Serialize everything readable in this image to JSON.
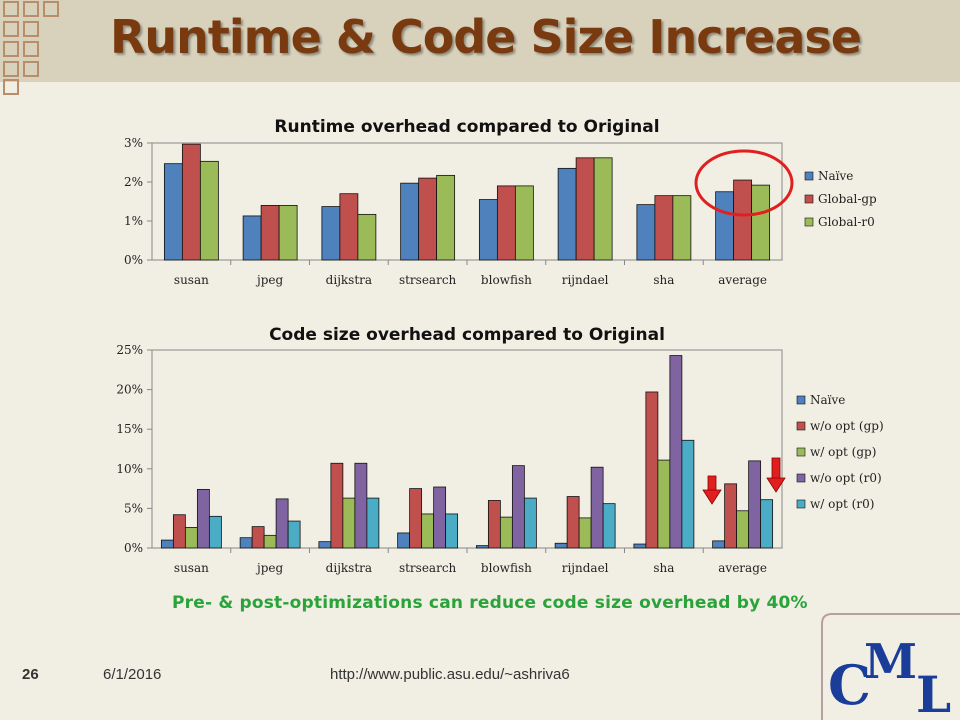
{
  "slide": {
    "title": "Runtime & Code Size Increase",
    "note": "Pre- & post-optimizations can reduce code size overhead by 40%",
    "page_number": "26",
    "date": "6/1/2016",
    "url": "http://www.public.asu.edu/~ashriva6",
    "logo_text": "CML",
    "colors": {
      "title": "#7a3a10",
      "note": "#2aa33a",
      "highlight": "#e02020"
    }
  },
  "chart_data": [
    {
      "type": "bar",
      "title": "Runtime overhead compared to Original",
      "categories": [
        "susan",
        "jpeg",
        "dijkstra",
        "strsearch",
        "blowfish",
        "rijndael",
        "sha",
        "average"
      ],
      "ylim": [
        0,
        3
      ],
      "yticks": [
        "0%",
        "1%",
        "2%",
        "3%"
      ],
      "legend": "right",
      "grid": false,
      "series": [
        {
          "name": "Naïve",
          "color": "#4f81bd",
          "values": [
            2.47,
            1.13,
            1.37,
            1.97,
            1.55,
            2.35,
            1.42,
            1.75
          ]
        },
        {
          "name": "Global-gp",
          "color": "#c0504d",
          "values": [
            2.97,
            1.4,
            1.7,
            2.1,
            1.9,
            2.62,
            1.65,
            2.05
          ]
        },
        {
          "name": "Global-r0",
          "color": "#9bbb59",
          "values": [
            2.53,
            1.4,
            1.17,
            2.17,
            1.9,
            2.62,
            1.65,
            1.92
          ]
        }
      ]
    },
    {
      "type": "bar",
      "title": "Code size overhead compared to Original",
      "categories": [
        "susan",
        "jpeg",
        "dijkstra",
        "strsearch",
        "blowfish",
        "rijndael",
        "sha",
        "average"
      ],
      "ylim": [
        0,
        25
      ],
      "yticks": [
        "0%",
        "5%",
        "10%",
        "15%",
        "20%",
        "25%"
      ],
      "legend": "right",
      "grid": false,
      "series": [
        {
          "name": "Naïve",
          "color": "#4f81bd",
          "values": [
            1.0,
            1.3,
            0.8,
            1.9,
            0.3,
            0.6,
            0.5,
            0.9
          ]
        },
        {
          "name": "w/o opt (gp)",
          "color": "#c0504d",
          "values": [
            4.2,
            2.7,
            10.7,
            7.5,
            6.0,
            6.5,
            19.7,
            8.1
          ]
        },
        {
          "name": "w/ opt (gp)",
          "color": "#9bbb59",
          "values": [
            2.6,
            1.6,
            6.3,
            4.3,
            3.9,
            3.8,
            11.1,
            4.7
          ]
        },
        {
          "name": "w/o opt (r0)",
          "color": "#8064a2",
          "values": [
            7.4,
            6.2,
            10.7,
            7.7,
            10.4,
            10.2,
            24.3,
            11.0
          ]
        },
        {
          "name": "w/ opt (r0)",
          "color": "#4bacc6",
          "values": [
            4.0,
            3.4,
            6.3,
            4.3,
            6.3,
            5.6,
            13.6,
            6.1
          ]
        }
      ]
    }
  ]
}
